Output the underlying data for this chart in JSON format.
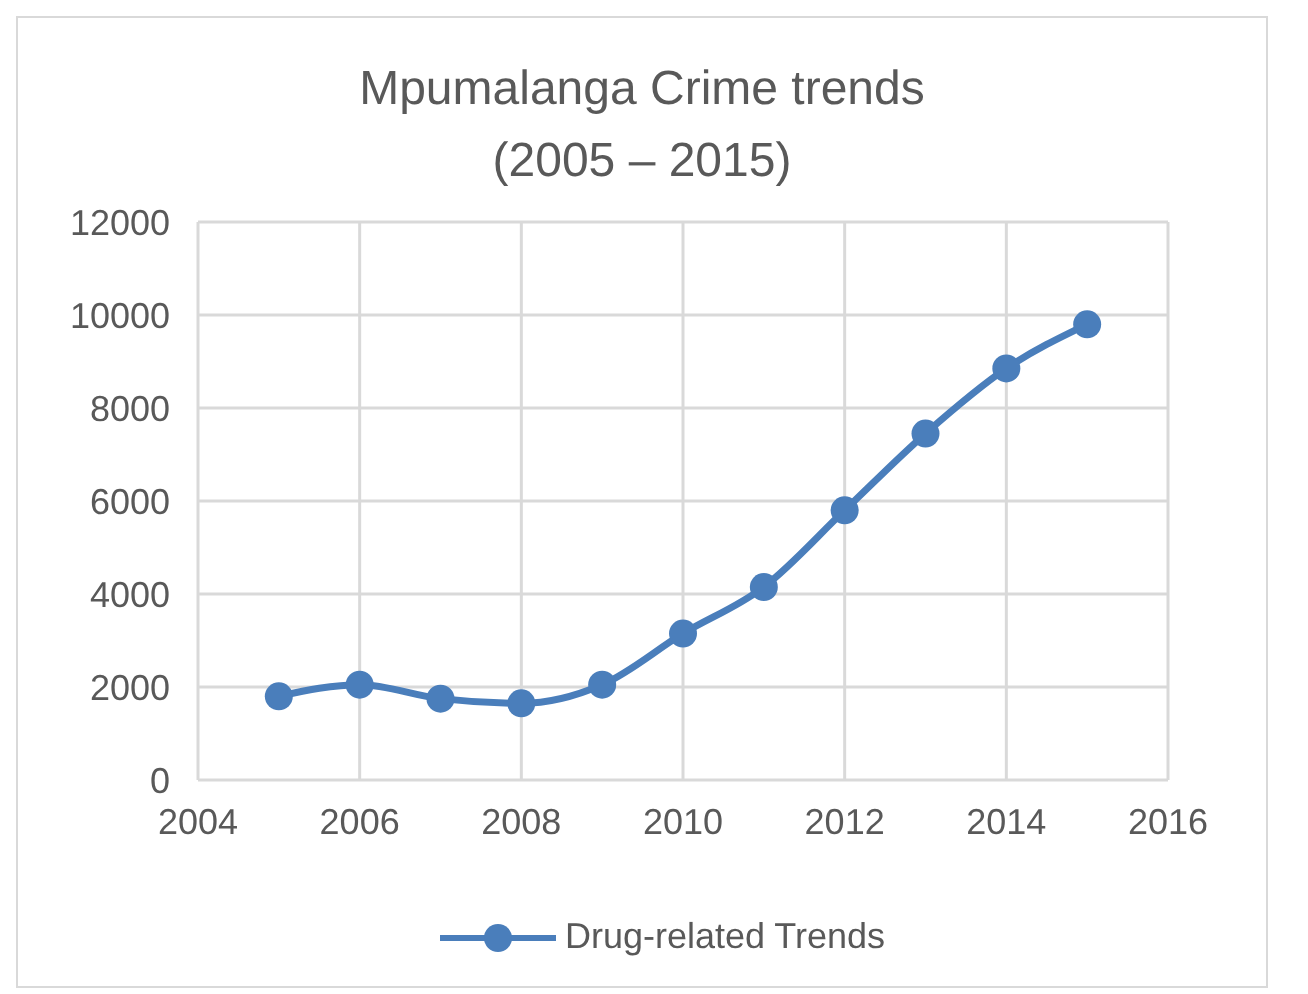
{
  "chart_data": {
    "type": "line",
    "title": "Mpumalanga Crime trends",
    "subtitle": "(2005 – 2015)",
    "x": [
      2005,
      2006,
      2007,
      2008,
      2009,
      2010,
      2011,
      2012,
      2013,
      2014,
      2015
    ],
    "series": [
      {
        "name": "Drug-related Trends",
        "color": "#4a7ebb",
        "values": [
          1800,
          2050,
          1750,
          1650,
          2050,
          3150,
          4150,
          5800,
          7450,
          8850,
          9800
        ]
      }
    ],
    "xlim": [
      2004,
      2016
    ],
    "xticks": [
      2004,
      2006,
      2008,
      2010,
      2012,
      2014,
      2016
    ],
    "ylim": [
      0,
      12000
    ],
    "yticks": [
      0,
      2000,
      4000,
      6000,
      8000,
      10000,
      12000
    ],
    "grid": true,
    "legend": "bottom",
    "marker": "circle",
    "line_style": "solid"
  }
}
